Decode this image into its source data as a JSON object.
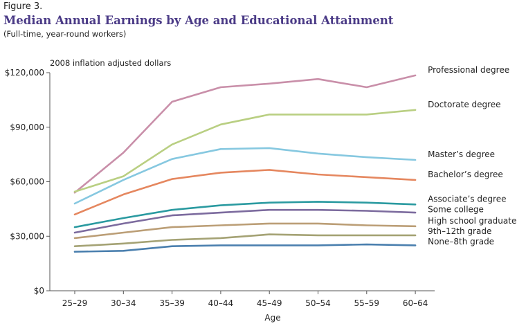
{
  "figure_label": "Figure 3.",
  "chart_data": {
    "type": "line",
    "title": "Median Annual Earnings by Age and Educational Attainment",
    "subtitle": "(Full-time, year-round workers)",
    "ylabel": "2008 inflation adjusted dollars",
    "xlabel": "Age",
    "categories": [
      "25–29",
      "30–34",
      "35–39",
      "40–44",
      "45–49",
      "50–54",
      "55–59",
      "60–64"
    ],
    "ylim": [
      0,
      120000
    ],
    "yticks": [
      0,
      30000,
      60000,
      90000,
      120000
    ],
    "ytick_labels": [
      "$0",
      "$30,000",
      "$60,000",
      "$90,000",
      "$120,000"
    ],
    "grid": false,
    "legend": "direct labels at right end of lines",
    "series": [
      {
        "name": "Professional degree",
        "color": "#c98fa9",
        "values": [
          54000,
          76000,
          104000,
          112000,
          114000,
          116500,
          112000,
          118500
        ]
      },
      {
        "name": "Doctorate degree",
        "color": "#b9cf82",
        "values": [
          54500,
          63000,
          80500,
          91500,
          97000,
          97000,
          97000,
          99500
        ]
      },
      {
        "name": "Master’s degree",
        "color": "#86c8e0",
        "values": [
          48000,
          61000,
          72500,
          78000,
          78500,
          75500,
          73500,
          72000
        ]
      },
      {
        "name": "Bachelor’s degree",
        "color": "#e5875f",
        "values": [
          42000,
          53000,
          61500,
          65000,
          66500,
          64000,
          62500,
          61000
        ]
      },
      {
        "name": "Associate’s degree",
        "color": "#2a9aa0",
        "values": [
          35000,
          40000,
          44500,
          47000,
          48500,
          49000,
          48500,
          47500
        ]
      },
      {
        "name": "Some college",
        "color": "#7c6b9e",
        "values": [
          32000,
          37000,
          41500,
          43000,
          44500,
          44500,
          44000,
          43000
        ]
      },
      {
        "name": "High school graduate",
        "color": "#bb9e76",
        "values": [
          29000,
          32000,
          35000,
          36000,
          37000,
          37000,
          36000,
          35500
        ]
      },
      {
        "name": "9th–12th grade",
        "color": "#a4a274",
        "values": [
          24500,
          26000,
          28000,
          29000,
          31000,
          30500,
          30500,
          30500
        ]
      },
      {
        "name": "None–8th grade",
        "color": "#4a7fae",
        "values": [
          21500,
          22000,
          24500,
          25000,
          25000,
          25000,
          25500,
          25000
        ]
      }
    ]
  }
}
